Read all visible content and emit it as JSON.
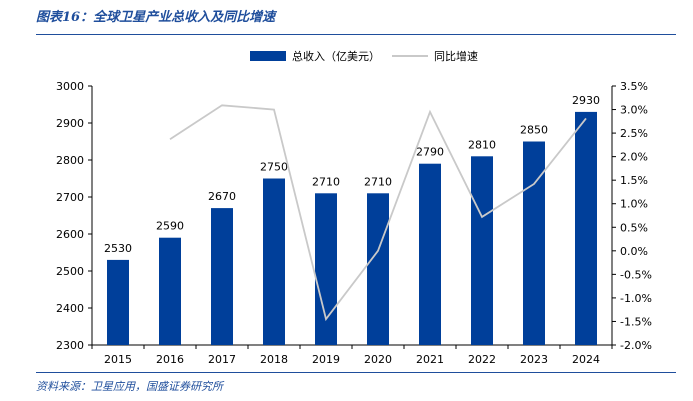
{
  "figure": {
    "title": "图表16：全球卫星产业总收入及同比增速",
    "source": "资料来源：卫星应用，国盛证券研究所"
  },
  "chart_data": {
    "type": "bar",
    "categories": [
      "2015",
      "2016",
      "2017",
      "2018",
      "2019",
      "2020",
      "2021",
      "2022",
      "2023",
      "2024"
    ],
    "series": [
      {
        "name": "总收入（亿美元）",
        "type": "bar",
        "axis": "left",
        "values": [
          2530,
          2590,
          2670,
          2750,
          2710,
          2710,
          2790,
          2810,
          2850,
          2930
        ],
        "color": "#003f9a"
      },
      {
        "name": "同比增速",
        "type": "line",
        "axis": "right",
        "values": [
          null,
          2.37,
          3.09,
          3.0,
          -1.45,
          0.0,
          2.95,
          0.72,
          1.42,
          2.81
        ],
        "color": "#c9c9c9"
      }
    ],
    "data_labels": [
      "2530",
      "2590",
      "2670",
      "2750",
      "2710",
      "2710",
      "2790",
      "2810",
      "2850",
      "2930"
    ],
    "ylim_left": [
      2300,
      3000
    ],
    "yticks_left": [
      "2300",
      "2400",
      "2500",
      "2600",
      "2700",
      "2800",
      "2900",
      "3000"
    ],
    "ylim_right": [
      -2.0,
      3.5
    ],
    "yticks_right": [
      "-2.0%",
      "-1.5%",
      "-1.0%",
      "-0.5%",
      "0.0%",
      "0.5%",
      "1.0%",
      "1.5%",
      "2.0%",
      "2.5%",
      "3.0%",
      "3.5%"
    ],
    "legend_position": "top-center",
    "grid": false
  }
}
